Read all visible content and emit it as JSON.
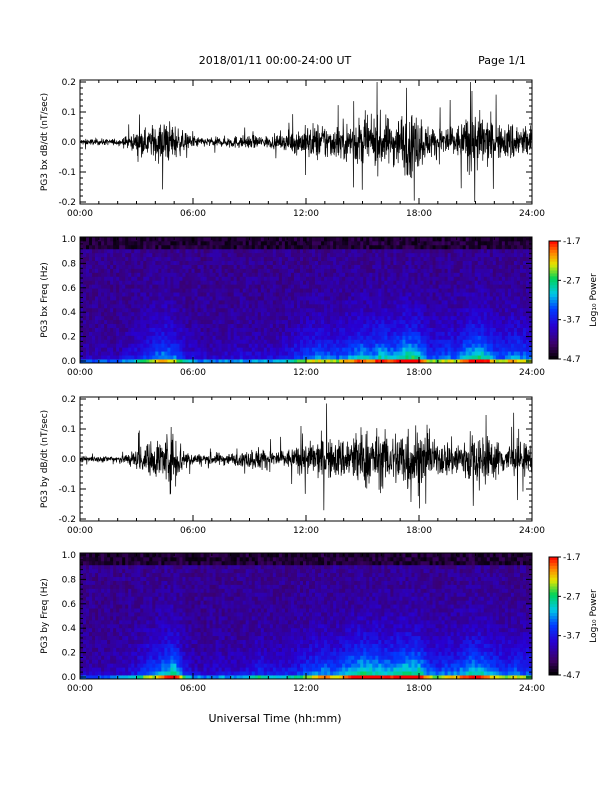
{
  "header": {
    "title": "2018/01/11  00:00-24:00 UT",
    "page": "Page 1/1"
  },
  "footer": {
    "xlabel": "Universal Time (hh:mm)"
  },
  "colors": {
    "trace": "#000000",
    "frame": "#000000",
    "background": "#ffffff"
  },
  "chart_data": [
    {
      "type": "line",
      "ylabel": "PG3 bx dB/dt (nT/sec)",
      "xlim": [
        "00:00",
        "24:00"
      ],
      "x_ticks": [
        "00:00",
        "06:00",
        "12:00",
        "18:00",
        "24:00"
      ],
      "ylim": [
        -0.2,
        0.2
      ],
      "y_ticks": [
        "0.2",
        "0.1",
        "0.0",
        "-0.1",
        "-0.2"
      ],
      "series": [
        {
          "x_hours": [
            0,
            0.5,
            1,
            1.5,
            2,
            2.5,
            3,
            3.5,
            4,
            4.5,
            5,
            5.5,
            6,
            6.5,
            7,
            7.5,
            8,
            8.5,
            9,
            9.5,
            10,
            10.5,
            11,
            11.5,
            12,
            12.5,
            13,
            13.5,
            14,
            14.5,
            15,
            15.5,
            16,
            16.5,
            17,
            17.5,
            18,
            18.5,
            19,
            19.5,
            20,
            20.5,
            21,
            21.5,
            22,
            22.5,
            23,
            23.5,
            24
          ],
          "amplitude": [
            0.01,
            0.01,
            0.01,
            0.01,
            0.01,
            0.02,
            0.03,
            0.04,
            0.06,
            0.07,
            0.06,
            0.03,
            0.02,
            0.015,
            0.015,
            0.015,
            0.02,
            0.02,
            0.02,
            0.02,
            0.02,
            0.02,
            0.03,
            0.04,
            0.05,
            0.06,
            0.06,
            0.05,
            0.06,
            0.07,
            0.08,
            0.07,
            0.09,
            0.07,
            0.09,
            0.11,
            0.09,
            0.05,
            0.05,
            0.06,
            0.05,
            0.08,
            0.1,
            0.09,
            0.06,
            0.05,
            0.07,
            0.06,
            0.05
          ]
        }
      ]
    },
    {
      "type": "heatmap",
      "ylabel": "PG3 bx Freq (Hz)",
      "xlim": [
        "00:00",
        "24:00"
      ],
      "x_ticks": [
        "00:00",
        "06:00",
        "12:00",
        "18:00",
        "24:00"
      ],
      "ylim": [
        0.0,
        1.0
      ],
      "y_ticks": [
        "1.0",
        "0.8",
        "0.6",
        "0.4",
        "0.2",
        "0.0"
      ],
      "colorbar": {
        "label": "Log₁₀ Power",
        "ticks": [
          "-1.7",
          "-2.7",
          "-3.7",
          "-4.7"
        ],
        "range": [
          -4.7,
          -1.7
        ]
      }
    },
    {
      "type": "line",
      "ylabel": "PG3 by dB/dt (nT/sec)",
      "xlim": [
        "00:00",
        "24:00"
      ],
      "x_ticks": [
        "00:00",
        "06:00",
        "12:00",
        "18:00",
        "24:00"
      ],
      "ylim": [
        -0.2,
        0.2
      ],
      "y_ticks": [
        "0.2",
        "0.1",
        "0.0",
        "-0.1",
        "-0.2"
      ],
      "series": [
        {
          "x_hours": [
            0,
            0.5,
            1,
            1.5,
            2,
            2.5,
            3,
            3.5,
            4,
            4.5,
            5,
            5.5,
            6,
            6.5,
            7,
            7.5,
            8,
            8.5,
            9,
            9.5,
            10,
            10.5,
            11,
            11.5,
            12,
            12.5,
            13,
            13.5,
            14,
            14.5,
            15,
            15.5,
            16,
            16.5,
            17,
            17.5,
            18,
            18.5,
            19,
            19.5,
            20,
            20.5,
            21,
            21.5,
            22,
            22.5,
            23,
            23.5,
            24
          ],
          "amplitude": [
            0.01,
            0.01,
            0.01,
            0.01,
            0.015,
            0.02,
            0.03,
            0.05,
            0.06,
            0.08,
            0.1,
            0.04,
            0.02,
            0.015,
            0.02,
            0.02,
            0.02,
            0.02,
            0.03,
            0.04,
            0.03,
            0.03,
            0.03,
            0.04,
            0.05,
            0.06,
            0.07,
            0.06,
            0.07,
            0.09,
            0.1,
            0.09,
            0.09,
            0.08,
            0.1,
            0.13,
            0.1,
            0.06,
            0.05,
            0.06,
            0.06,
            0.08,
            0.09,
            0.08,
            0.06,
            0.05,
            0.06,
            0.05,
            0.05
          ]
        }
      ]
    },
    {
      "type": "heatmap",
      "ylabel": "PG3 by Freq (Hz)",
      "xlim": [
        "00:00",
        "24:00"
      ],
      "x_ticks": [
        "00:00",
        "06:00",
        "12:00",
        "18:00",
        "24:00"
      ],
      "ylim": [
        0.0,
        1.0
      ],
      "y_ticks": [
        "1.0",
        "0.8",
        "0.6",
        "0.4",
        "0.2",
        "0.0"
      ],
      "colorbar": {
        "label": "Log₁₀ Power",
        "ticks": [
          "-1.7",
          "-2.7",
          "-3.7",
          "-4.7"
        ],
        "range": [
          -4.7,
          -1.7
        ]
      }
    }
  ]
}
